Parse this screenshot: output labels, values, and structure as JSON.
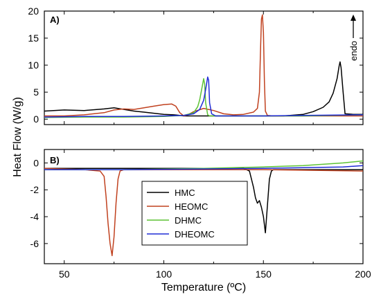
{
  "chart_data": [
    {
      "panel": "A)",
      "type": "line",
      "xlabel": "Temperature (ºC)",
      "ylabel": "Heat Flow (W/g)",
      "xlim": [
        40,
        200
      ],
      "ylim": [
        -1,
        20
      ],
      "xticks": [
        50,
        100,
        150,
        200
      ],
      "yticks": [
        0,
        5,
        10,
        15,
        20
      ],
      "annotation": "endo",
      "series": [
        {
          "name": "HMC",
          "color": "#000000",
          "x": [
            40,
            50,
            60,
            70,
            75,
            80,
            85,
            90,
            95,
            100,
            105,
            108,
            110,
            115,
            120,
            130,
            140,
            150,
            160,
            170,
            175,
            180,
            183,
            185,
            187,
            188,
            188.5,
            189,
            190,
            191,
            195,
            200
          ],
          "y": [
            1.5,
            1.7,
            1.6,
            1.9,
            2.1,
            1.8,
            1.5,
            1.3,
            1.1,
            0.9,
            0.8,
            0.7,
            0.6,
            0.6,
            0.6,
            0.6,
            0.6,
            0.6,
            0.6,
            0.9,
            1.4,
            2.2,
            3.2,
            4.8,
            7.5,
            9.8,
            10.6,
            9.5,
            5.0,
            1.0,
            0.9,
            0.9
          ]
        },
        {
          "name": "HEOMC",
          "color": "#c0401e",
          "x": [
            40,
            50,
            60,
            70,
            75,
            80,
            85,
            90,
            95,
            100,
            104,
            106,
            108,
            110,
            112,
            115,
            120,
            125,
            130,
            135,
            140,
            145,
            147,
            148,
            148.5,
            149,
            149.5,
            150,
            150.5,
            151,
            152,
            155,
            160,
            170,
            180,
            190,
            200
          ],
          "y": [
            0.6,
            0.6,
            0.8,
            1.2,
            1.7,
            1.9,
            1.8,
            2.1,
            2.4,
            2.7,
            2.8,
            2.4,
            1.2,
            0.6,
            0.8,
            1.4,
            2.0,
            1.6,
            1.0,
            0.8,
            0.9,
            1.3,
            2.0,
            5.0,
            12.0,
            18.5,
            19.3,
            16.0,
            7.0,
            1.5,
            0.7,
            0.6,
            0.6,
            0.6,
            0.6,
            0.6,
            0.6
          ]
        },
        {
          "name": "DHMC",
          "color": "#5cc234",
          "x": [
            40,
            60,
            80,
            100,
            110,
            115,
            117,
            118,
            119,
            120,
            120.5,
            121,
            122,
            123,
            130,
            150,
            170,
            200
          ],
          "y": [
            0.3,
            0.4,
            0.4,
            0.5,
            0.7,
            1.2,
            2.3,
            3.6,
            5.5,
            7.5,
            6.5,
            3.0,
            0.8,
            0.6,
            0.6,
            0.6,
            0.6,
            0.8
          ]
        },
        {
          "name": "DHEOMC",
          "color": "#1f2bd6",
          "x": [
            40,
            60,
            80,
            100,
            110,
            115,
            118,
            120,
            121,
            122,
            122.5,
            123,
            124,
            126,
            130,
            150,
            170,
            200
          ],
          "y": [
            0.4,
            0.5,
            0.5,
            0.6,
            0.7,
            1.0,
            1.8,
            3.5,
            5.5,
            7.8,
            7.2,
            3.0,
            1.0,
            0.6,
            0.6,
            0.6,
            0.7,
            0.8
          ]
        }
      ]
    },
    {
      "panel": "B)",
      "type": "line",
      "xlabel": "Temperature (ºC)",
      "ylabel": "Heat Flow (W/g)",
      "xlim": [
        40,
        200
      ],
      "ylim": [
        -7.5,
        1
      ],
      "xticks": [
        50,
        100,
        150,
        200
      ],
      "yticks": [
        0,
        -2,
        -4,
        -6
      ],
      "legend": {
        "position": "center",
        "entries": [
          "HMC",
          "HEOMC",
          "DHMC",
          "DHEOMC"
        ]
      },
      "series": [
        {
          "name": "HMC",
          "color": "#000000",
          "x": [
            40,
            80,
            120,
            140,
            143,
            145,
            146,
            147,
            148,
            149,
            150,
            151,
            152,
            153,
            154,
            155,
            157,
            160,
            180,
            200
          ],
          "y": [
            -0.4,
            -0.4,
            -0.4,
            -0.4,
            -0.6,
            -1.8,
            -2.6,
            -3.0,
            -2.8,
            -3.3,
            -4.0,
            -5.2,
            -3.2,
            -1.2,
            -0.6,
            -0.5,
            -0.5,
            -0.5,
            -0.5,
            -0.5
          ]
        },
        {
          "name": "HEOMC",
          "color": "#c0401e",
          "x": [
            40,
            60,
            68,
            70,
            71,
            72,
            73,
            74,
            75,
            76,
            77,
            78,
            80,
            90,
            120,
            150,
            200
          ],
          "y": [
            -0.4,
            -0.5,
            -0.6,
            -1.0,
            -2.5,
            -4.5,
            -6.0,
            -6.9,
            -5.5,
            -3.0,
            -1.2,
            -0.6,
            -0.5,
            -0.5,
            -0.5,
            -0.5,
            -0.6
          ]
        },
        {
          "name": "DHMC",
          "color": "#5cc234",
          "x": [
            40,
            80,
            120,
            150,
            170,
            190,
            200
          ],
          "y": [
            -0.5,
            -0.5,
            -0.4,
            -0.3,
            -0.2,
            0.0,
            0.15
          ]
        },
        {
          "name": "DHEOMC",
          "color": "#1f2bd6",
          "x": [
            40,
            80,
            120,
            150,
            170,
            190,
            200
          ],
          "y": [
            -0.5,
            -0.5,
            -0.45,
            -0.4,
            -0.35,
            -0.3,
            -0.2
          ]
        }
      ]
    }
  ]
}
